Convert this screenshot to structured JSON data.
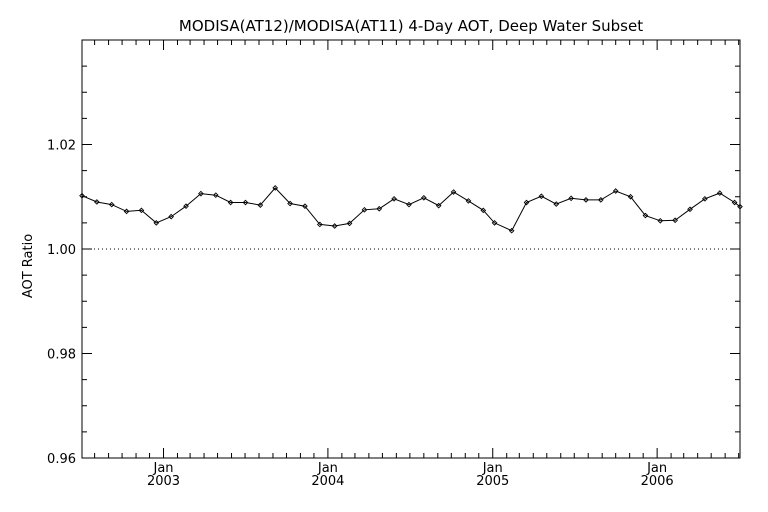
{
  "chart_data": {
    "type": "line",
    "title": "MODISA(AT12)/MODISA(AT11) 4-Day AOT, Deep Water Subset",
    "xlabel": "",
    "ylabel": "AOT Ratio",
    "ylim": [
      0.96,
      1.04
    ],
    "xlim": [
      "2002-07-04",
      "2006-07-04"
    ],
    "y_ticks": [
      "0.96",
      "0.98",
      "1.00",
      "1.02"
    ],
    "x_ticks": [
      {
        "date": "2003-01-01",
        "month": "Jan",
        "year": "2003"
      },
      {
        "date": "2004-01-01",
        "month": "Jan",
        "year": "2004"
      },
      {
        "date": "2005-01-01",
        "month": "Jan",
        "year": "2005"
      },
      {
        "date": "2006-01-01",
        "month": "Jan",
        "year": "2006"
      }
    ],
    "reference_line": {
      "y": 1.0,
      "style": "dotted"
    },
    "series": [
      {
        "x": [
          "2002-07-04",
          "2002-08-06",
          "2002-09-08",
          "2002-10-11",
          "2002-11-13",
          "2002-12-16",
          "2003-01-18",
          "2003-02-20",
          "2003-03-25",
          "2003-04-27",
          "2003-05-30",
          "2003-07-02",
          "2003-08-04",
          "2003-09-06",
          "2003-10-09",
          "2003-11-11",
          "2003-12-14",
          "2004-01-16",
          "2004-02-18",
          "2004-03-22",
          "2004-04-24",
          "2004-05-27",
          "2004-06-29",
          "2004-08-01",
          "2004-09-03",
          "2004-10-06",
          "2004-11-08",
          "2004-12-11",
          "2005-01-05",
          "2005-02-12",
          "2005-03-17",
          "2005-04-19",
          "2005-05-22",
          "2005-06-24",
          "2005-07-27",
          "2005-08-29",
          "2005-10-01",
          "2005-11-03",
          "2005-12-06",
          "2006-01-08",
          "2006-02-10",
          "2006-03-15",
          "2006-04-17",
          "2006-05-20",
          "2006-06-22",
          "2006-07-04"
        ],
        "values": [
          1.0102,
          1.009,
          1.0085,
          1.0072,
          1.0074,
          1.005,
          1.0062,
          1.0082,
          1.0106,
          1.0103,
          1.0089,
          1.0089,
          1.0084,
          1.0117,
          1.0087,
          1.0082,
          1.0047,
          1.0044,
          1.0049,
          1.0075,
          1.0077,
          1.0096,
          1.0085,
          1.0098,
          1.0083,
          1.0109,
          1.0092,
          1.0074,
          1.005,
          1.0035,
          1.0089,
          1.0101,
          1.0086,
          1.0097,
          1.0094,
          1.0094,
          1.0111,
          1.01,
          1.0064,
          1.0054,
          1.0055,
          1.0076,
          1.0096,
          1.0107,
          1.0089,
          1.0081
        ]
      }
    ],
    "grid": false,
    "colors": {
      "line": "#000000",
      "axis": "#000000",
      "background": "#ffffff"
    }
  }
}
